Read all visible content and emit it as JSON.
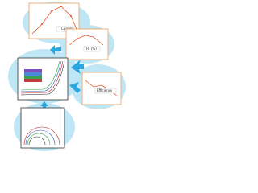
{
  "panels": [
    {
      "legend": "Current"
    },
    {
      "legend": "FF (%)"
    },
    {
      "legend": "Efficiency"
    }
  ]
}
